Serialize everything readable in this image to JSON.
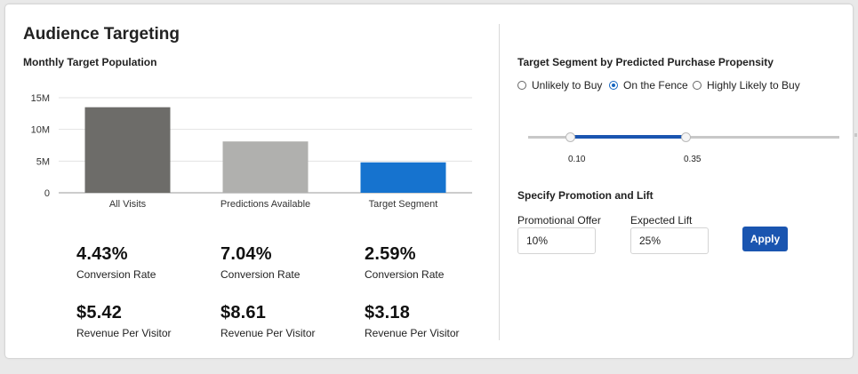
{
  "card": {
    "title": "Audience Targeting"
  },
  "population": {
    "heading": "Monthly Target Population"
  },
  "chart_data": {
    "type": "bar",
    "categories": [
      "All Visits",
      "Predictions Available",
      "Target Segment"
    ],
    "values": [
      13500000,
      8100000,
      4800000
    ],
    "colors": [
      "#6d6c69",
      "#b0b0ae",
      "#1673cf"
    ],
    "ylim": [
      0,
      15000000
    ],
    "yticks": [
      {
        "value": 15000000,
        "label": "15M"
      },
      {
        "value": 10000000,
        "label": "10M"
      },
      {
        "value": 5000000,
        "label": "5M"
      },
      {
        "value": 0,
        "label": "0"
      }
    ],
    "grid": true,
    "title": "",
    "xlabel": "",
    "ylabel": ""
  },
  "metrics": {
    "conversion": [
      {
        "value": "4.43%",
        "label": "Conversion Rate"
      },
      {
        "value": "7.04%",
        "label": "Conversion Rate"
      },
      {
        "value": "2.59%",
        "label": "Conversion Rate"
      }
    ],
    "revenue": [
      {
        "value": "$5.42",
        "label": "Revenue Per Visitor"
      },
      {
        "value": "$8.61",
        "label": "Revenue Per Visitor"
      },
      {
        "value": "$3.18",
        "label": "Revenue Per Visitor"
      }
    ]
  },
  "segment": {
    "heading": "Target Segment by Predicted Purchase Propensity",
    "options": [
      "Unlikely to Buy",
      "On the Fence",
      "Highly Likely to Buy"
    ],
    "selected": "On the Fence",
    "range": {
      "low": 0.1,
      "high": 0.35,
      "low_label": "0.10",
      "high_label": "0.35"
    }
  },
  "promotion": {
    "heading": "Specify Promotion and Lift",
    "offer_label": "Promotional Offer",
    "offer_value": "10%",
    "lift_label": "Expected Lift",
    "lift_value": "25%",
    "apply_label": "Apply"
  },
  "colors": {
    "accent": "#1a55b0",
    "target_bar": "#1673cf"
  }
}
